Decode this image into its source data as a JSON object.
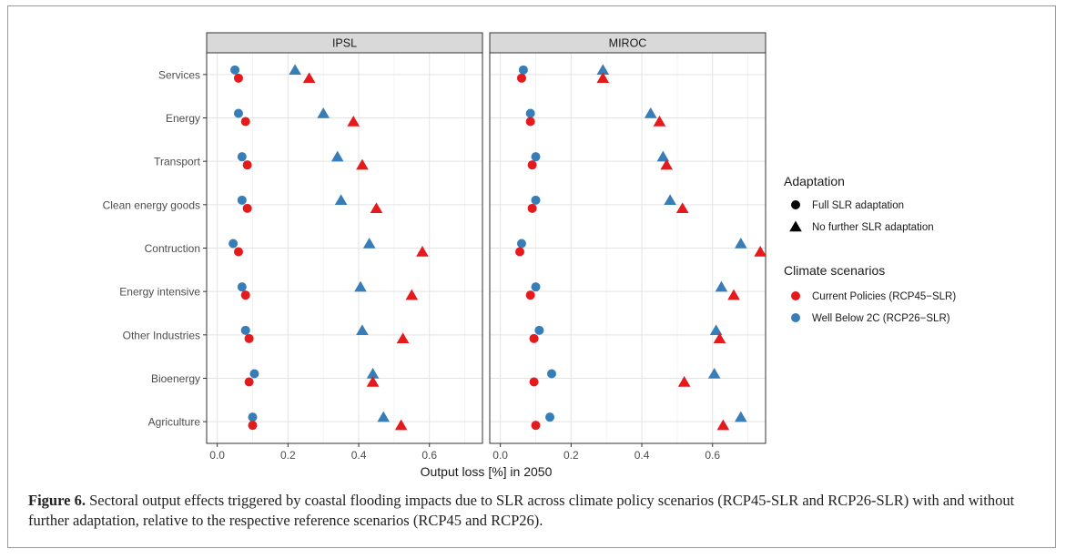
{
  "chart_data": {
    "type": "scatter",
    "facets": [
      "IPSL",
      "MIROC"
    ],
    "categories": [
      "Services",
      "Energy",
      "Transport",
      "Clean energy goods",
      "Contruction",
      "Energy intensive",
      "Other Industries",
      "Bioenergy",
      "Agriculture"
    ],
    "xlabel": "Output loss [%] in 2050",
    "xlim": [
      -0.03,
      0.75
    ],
    "xticks": [
      0.0,
      0.2,
      0.4,
      0.6
    ],
    "xtick_labels": [
      "0.0",
      "0.2",
      "0.4",
      "0.6"
    ],
    "grid": true,
    "series": [
      {
        "facet": "IPSL",
        "scenario": "Well Below 2C (RCP26−SLR)",
        "adaptation": "Full SLR adaptation",
        "color": "#377EB8",
        "shape": "circle",
        "values": [
          0.05,
          0.06,
          0.07,
          0.07,
          0.045,
          0.07,
          0.08,
          0.105,
          0.1
        ]
      },
      {
        "facet": "IPSL",
        "scenario": "Current Policies (RCP45−SLR)",
        "adaptation": "Full SLR adaptation",
        "color": "#E41A1C",
        "shape": "circle",
        "values": [
          0.06,
          0.08,
          0.085,
          0.085,
          0.06,
          0.08,
          0.09,
          0.09,
          0.1
        ]
      },
      {
        "facet": "IPSL",
        "scenario": "Well Below 2C (RCP26−SLR)",
        "adaptation": "No further SLR adaptation",
        "color": "#377EB8",
        "shape": "triangle",
        "values": [
          0.22,
          0.3,
          0.34,
          0.35,
          0.43,
          0.405,
          0.41,
          0.44,
          0.47
        ]
      },
      {
        "facet": "IPSL",
        "scenario": "Current Policies (RCP45−SLR)",
        "adaptation": "No further SLR adaptation",
        "color": "#E41A1C",
        "shape": "triangle",
        "values": [
          0.26,
          0.385,
          0.41,
          0.45,
          0.58,
          0.55,
          0.525,
          0.44,
          0.52
        ]
      },
      {
        "facet": "MIROC",
        "scenario": "Well Below 2C (RCP26−SLR)",
        "adaptation": "Full SLR adaptation",
        "color": "#377EB8",
        "shape": "circle",
        "values": [
          0.065,
          0.085,
          0.1,
          0.1,
          0.06,
          0.1,
          0.11,
          0.145,
          0.14
        ]
      },
      {
        "facet": "MIROC",
        "scenario": "Current Policies (RCP45−SLR)",
        "adaptation": "Full SLR adaptation",
        "color": "#E41A1C",
        "shape": "circle",
        "values": [
          0.06,
          0.085,
          0.09,
          0.09,
          0.055,
          0.085,
          0.095,
          0.095,
          0.1
        ]
      },
      {
        "facet": "MIROC",
        "scenario": "Well Below 2C (RCP26−SLR)",
        "adaptation": "No further SLR adaptation",
        "color": "#377EB8",
        "shape": "triangle",
        "values": [
          0.29,
          0.425,
          0.46,
          0.48,
          0.68,
          0.625,
          0.61,
          0.605,
          0.68
        ]
      },
      {
        "facet": "MIROC",
        "scenario": "Current Policies (RCP45−SLR)",
        "adaptation": "No further SLR adaptation",
        "color": "#E41A1C",
        "shape": "triangle",
        "values": [
          0.29,
          0.45,
          0.47,
          0.515,
          0.735,
          0.66,
          0.62,
          0.52,
          0.63
        ]
      }
    ],
    "legend": {
      "placement": "right",
      "adaptation_title": "Adaptation",
      "adaptation_items": [
        "Full SLR adaptation",
        "No further SLR adaptation"
      ],
      "climate_title": "Climate scenarios",
      "climate_items": [
        {
          "label": "Current Policies (RCP45−SLR)",
          "color": "#E41A1C"
        },
        {
          "label": "Well Below 2C (RCP26−SLR)",
          "color": "#377EB8"
        }
      ]
    }
  },
  "caption": {
    "label": "Figure 6.",
    "text": " Sectoral output effects triggered by coastal flooding impacts due to SLR across climate policy scenarios (RCP45-SLR and RCP26-SLR) with and without further adaptation, relative to the respective reference scenarios (RCP45 and RCP26)."
  }
}
